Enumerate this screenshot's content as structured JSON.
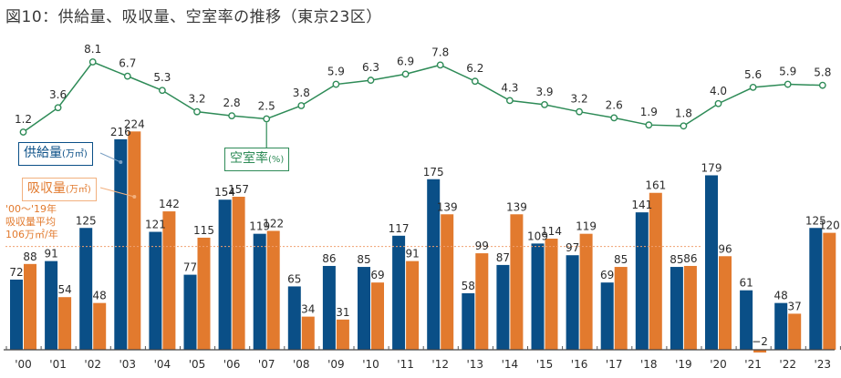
{
  "title": "図10：供給量、吸収量、空室率の推移（東京23区）",
  "legend": {
    "supply_label": "供給量",
    "supply_unit": "(万㎡)",
    "absorption_label": "吸収量",
    "absorption_unit": "(万㎡)",
    "vacancy_label": "空室率",
    "vacancy_unit": "(%)"
  },
  "annotation": {
    "line1": "'00～'19年",
    "line2": "吸収量平均",
    "line3": "106万㎡/年"
  },
  "colors": {
    "supply": "#0a4f87",
    "absorption": "#e27a2e",
    "vacancy": "#2e8b57",
    "average_line": "#f0a070"
  },
  "chart_data": {
    "type": "bar",
    "title": "図10：供給量、吸収量、空室率の推移（東京23区）",
    "xlabel": "",
    "ylabel": "",
    "categories": [
      "'00",
      "'01",
      "'02",
      "'03",
      "'04",
      "'05",
      "'06",
      "'07",
      "'08",
      "'09",
      "'10",
      "'11",
      "'12",
      "'13",
      "'14",
      "'15",
      "'16",
      "'17",
      "'18",
      "'19",
      "'20",
      "'21",
      "'22",
      "'23"
    ],
    "series": [
      {
        "name": "供給量(万㎡)",
        "type": "bar",
        "values": [
          72,
          91,
          125,
          216,
          121,
          77,
          154,
          119,
          65,
          86,
          85,
          117,
          175,
          58,
          87,
          109,
          97,
          69,
          141,
          85,
          179,
          61,
          48,
          125
        ]
      },
      {
        "name": "吸収量(万㎡)",
        "type": "bar",
        "values": [
          88,
          54,
          48,
          224,
          142,
          115,
          157,
          122,
          34,
          31,
          69,
          91,
          139,
          99,
          139,
          114,
          119,
          85,
          161,
          86,
          96,
          -2,
          37,
          120
        ]
      },
      {
        "name": "空室率(%)",
        "type": "line",
        "values": [
          1.2,
          3.6,
          8.1,
          6.7,
          5.3,
          3.2,
          2.8,
          2.5,
          3.8,
          5.9,
          6.3,
          6.9,
          7.8,
          6.2,
          4.3,
          3.9,
          3.2,
          2.6,
          1.9,
          1.8,
          4.0,
          5.6,
          5.9,
          5.8
        ]
      }
    ],
    "reference_line": {
      "label": "'00～'19年 吸収量平均 106万㎡/年",
      "value": 106,
      "range": [
        "'00",
        "'19"
      ]
    },
    "bar_ylim": [
      -5,
      240
    ],
    "line_ylim": [
      0,
      9
    ],
    "grid": false,
    "legend_placement": "left"
  }
}
